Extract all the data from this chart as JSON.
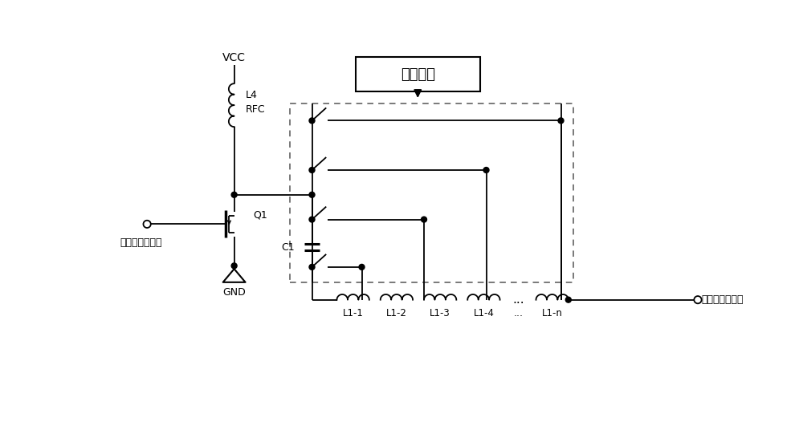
{
  "bg_color": "#ffffff",
  "control_box_text": "控制模块",
  "vcc_label": "VCC",
  "l4_label": "L4",
  "rfc_label": "RFC",
  "q1_label": "Q1",
  "gnd_label": "GND",
  "c1_label": "C1",
  "l_labels": [
    "L1-1",
    "L1-2",
    "L1-3",
    "L1-4",
    "...",
    "L1-n"
  ],
  "rf_in_label": "射频信号输入端",
  "rf_out_label": "射频信号输出端"
}
